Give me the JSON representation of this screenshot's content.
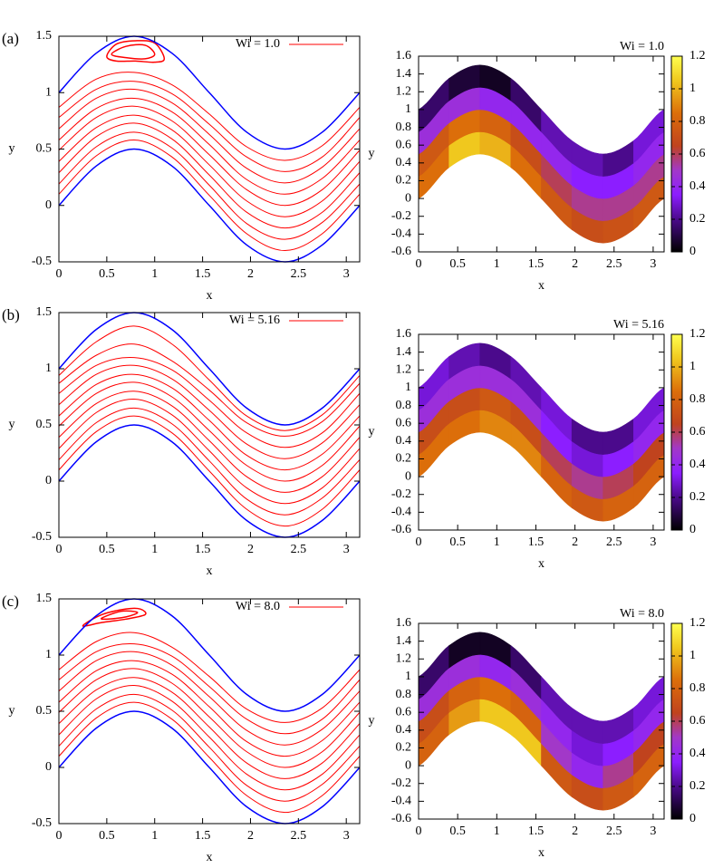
{
  "chart_data": [
    {
      "type": "line",
      "panel_label": "(a)",
      "xlabel": "x",
      "ylabel": "y",
      "xlim": [
        0,
        3.14
      ],
      "ylim": [
        -0.5,
        1.5
      ],
      "xticks": [
        0,
        0.5,
        1,
        1.5,
        2,
        2.5,
        3
      ],
      "yticks": [
        -0.5,
        0,
        0.5,
        1,
        1.5
      ],
      "x": [
        0,
        0.39,
        0.785,
        1.18,
        1.57,
        1.96,
        2.36,
        2.75,
        3.14
      ],
      "walls": {
        "color": "#0000ff",
        "lower": [
          0,
          0.35,
          0.5,
          0.35,
          0,
          -0.35,
          -0.5,
          -0.35,
          0
        ],
        "upper": [
          1,
          1.35,
          1.5,
          1.35,
          1,
          0.65,
          0.5,
          0.65,
          1
        ]
      },
      "series": [
        {
          "name": "Wi = 1.0",
          "color": "#ff0000",
          "lines": [
            [
              0.1,
              0.44,
              0.58,
              0.43,
              0.09,
              -0.25,
              -0.4,
              -0.25,
              0.1
            ],
            [
              0.19,
              0.52,
              0.65,
              0.51,
              0.18,
              -0.16,
              -0.3,
              -0.15,
              0.19
            ],
            [
              0.29,
              0.61,
              0.73,
              0.59,
              0.27,
              -0.06,
              -0.2,
              -0.06,
              0.29
            ],
            [
              0.39,
              0.69,
              0.8,
              0.67,
              0.36,
              0.04,
              -0.1,
              0.04,
              0.39
            ],
            [
              0.49,
              0.78,
              0.88,
              0.75,
              0.45,
              0.14,
              0,
              0.14,
              0.49
            ],
            [
              0.58,
              0.86,
              0.95,
              0.83,
              0.54,
              0.23,
              0.1,
              0.24,
              0.58
            ],
            [
              0.68,
              0.95,
              1.03,
              0.91,
              0.63,
              0.33,
              0.2,
              0.34,
              0.68
            ],
            [
              0.78,
              1.03,
              1.1,
              0.99,
              0.72,
              0.43,
              0.3,
              0.43,
              0.78
            ],
            [
              0.87,
              1.12,
              1.18,
              1.07,
              0.81,
              0.52,
              0.4,
              0.53,
              0.87
            ]
          ],
          "loops": [
            {
              "x": [
                0.5,
                0.6,
                0.8,
                1.0,
                1.1,
                1.0,
                0.8,
                0.6
              ],
              "y": [
                1.32,
                1.43,
                1.46,
                1.44,
                1.3,
                1.27,
                1.28,
                1.28
              ]
            },
            {
              "x": [
                0.55,
                0.7,
                0.9,
                1.0,
                0.9,
                0.7
              ],
              "y": [
                1.34,
                1.41,
                1.42,
                1.34,
                1.3,
                1.31
              ]
            }
          ]
        }
      ]
    },
    {
      "type": "heatmap",
      "title": "Wi = 1.0",
      "xlabel": "x",
      "ylabel": "y",
      "xlim": [
        0,
        3.14
      ],
      "ylim": [
        -0.6,
        1.6
      ],
      "xticks": [
        0,
        0.5,
        1,
        1.5,
        2,
        2.5,
        3
      ],
      "yticks": [
        -0.6,
        -0.4,
        -0.2,
        0,
        0.2,
        0.4,
        0.6,
        0.8,
        1,
        1.2,
        1.4,
        1.6
      ],
      "x": [
        0,
        0.39,
        0.785,
        1.18,
        1.57,
        1.96,
        2.36,
        2.75,
        3.14
      ],
      "y_lower": [
        0,
        0.35,
        0.5,
        0.35,
        0,
        -0.35,
        -0.5,
        -0.35,
        0
      ],
      "y_upper": [
        1,
        1.35,
        1.5,
        1.35,
        1,
        0.65,
        0.5,
        0.65,
        1
      ],
      "z": [
        [
          0.85,
          1.05,
          1.0,
          0.85,
          0.75,
          0.7,
          0.72,
          0.75
        ],
        [
          0.75,
          0.85,
          0.8,
          0.7,
          0.6,
          0.55,
          0.55,
          0.55
        ],
        [
          0.45,
          0.45,
          0.4,
          0.4,
          0.4,
          0.35,
          0.35,
          0.4
        ],
        [
          0.15,
          0.08,
          0.05,
          0.15,
          0.25,
          0.25,
          0.2,
          0.3
        ]
      ],
      "zlim": [
        0,
        1.2
      ],
      "zticks": [
        0,
        0.2,
        0.4,
        0.6,
        0.8,
        1,
        1.2
      ],
      "colormap": [
        {
          "value": 0,
          "color": "#000000"
        },
        {
          "value": 0.2,
          "color": "#4b0a8c"
        },
        {
          "value": 0.35,
          "color": "#8c1eff"
        },
        {
          "value": 0.5,
          "color": "#a238c8"
        },
        {
          "value": 0.65,
          "color": "#c0431e"
        },
        {
          "value": 0.85,
          "color": "#dc6e0a"
        },
        {
          "value": 1.05,
          "color": "#f0c81e"
        },
        {
          "value": 1.2,
          "color": "#ffff50"
        }
      ]
    },
    {
      "type": "line",
      "panel_label": "(b)",
      "xlabel": "x",
      "ylabel": "y",
      "xlim": [
        0,
        3.14
      ],
      "ylim": [
        -0.5,
        1.5
      ],
      "xticks": [
        0,
        0.5,
        1,
        1.5,
        2,
        2.5,
        3
      ],
      "yticks": [
        -0.5,
        0,
        0.5,
        1,
        1.5
      ],
      "x": [
        0,
        0.39,
        0.785,
        1.18,
        1.57,
        1.96,
        2.36,
        2.75,
        3.14
      ],
      "walls": {
        "color": "#0000ff",
        "lower": [
          0,
          0.35,
          0.5,
          0.35,
          0,
          -0.35,
          -0.5,
          -0.35,
          0
        ],
        "upper": [
          1,
          1.35,
          1.5,
          1.35,
          1,
          0.65,
          0.5,
          0.65,
          1
        ]
      },
      "series": [
        {
          "name": "Wi = 5.16",
          "color": "#ff0000",
          "lines": [
            [
              0.1,
              0.44,
              0.58,
              0.43,
              0.09,
              -0.25,
              -0.4,
              -0.25,
              0.1
            ],
            [
              0.19,
              0.52,
              0.65,
              0.51,
              0.18,
              -0.16,
              -0.3,
              -0.15,
              0.19
            ],
            [
              0.29,
              0.61,
              0.73,
              0.59,
              0.27,
              -0.06,
              -0.2,
              -0.06,
              0.29
            ],
            [
              0.39,
              0.69,
              0.8,
              0.67,
              0.36,
              0.04,
              -0.1,
              0.04,
              0.39
            ],
            [
              0.49,
              0.78,
              0.88,
              0.75,
              0.45,
              0.14,
              0,
              0.14,
              0.49
            ],
            [
              0.58,
              0.86,
              0.95,
              0.83,
              0.54,
              0.23,
              0.1,
              0.24,
              0.58
            ],
            [
              0.68,
              0.95,
              1.03,
              0.91,
              0.63,
              0.33,
              0.2,
              0.34,
              0.68
            ],
            [
              0.78,
              1.03,
              1.1,
              0.99,
              0.72,
              0.43,
              0.3,
              0.43,
              0.78
            ],
            [
              0.87,
              1.12,
              1.22,
              1.07,
              0.81,
              0.52,
              0.4,
              0.53,
              0.87
            ],
            [
              0.94,
              1.24,
              1.38,
              1.22,
              0.9,
              0.58,
              0.45,
              0.59,
              0.94
            ]
          ],
          "loops": []
        }
      ]
    },
    {
      "type": "heatmap",
      "title": "Wi = 5.16",
      "xlabel": "x",
      "ylabel": "y",
      "xlim": [
        0,
        3.14
      ],
      "ylim": [
        -0.6,
        1.6
      ],
      "xticks": [
        0,
        0.5,
        1,
        1.5,
        2,
        2.5,
        3
      ],
      "yticks": [
        -0.6,
        -0.4,
        -0.2,
        0,
        0.2,
        0.4,
        0.6,
        0.8,
        1,
        1.2,
        1.4,
        1.6
      ],
      "x": [
        0,
        0.39,
        0.785,
        1.18,
        1.57,
        1.96,
        2.36,
        2.75,
        3.14
      ],
      "y_lower": [
        0,
        0.35,
        0.5,
        0.35,
        0,
        -0.35,
        -0.5,
        -0.35,
        0
      ],
      "y_upper": [
        1,
        1.35,
        1.5,
        1.35,
        1,
        0.65,
        0.5,
        0.65,
        1
      ],
      "z": [
        [
          0.85,
          0.85,
          0.9,
          0.9,
          0.8,
          0.75,
          0.8,
          0.8
        ],
        [
          0.7,
          0.7,
          0.75,
          0.7,
          0.6,
          0.55,
          0.6,
          0.65
        ],
        [
          0.45,
          0.45,
          0.45,
          0.45,
          0.35,
          0.3,
          0.35,
          0.4
        ],
        [
          0.3,
          0.25,
          0.2,
          0.25,
          0.3,
          0.2,
          0.2,
          0.3
        ]
      ],
      "zlim": [
        0,
        1.2
      ],
      "zticks": [
        0,
        0.2,
        0.4,
        0.6,
        0.8,
        1,
        1.2
      ],
      "colormap": [
        {
          "value": 0,
          "color": "#000000"
        },
        {
          "value": 0.2,
          "color": "#4b0a8c"
        },
        {
          "value": 0.35,
          "color": "#8c1eff"
        },
        {
          "value": 0.5,
          "color": "#a238c8"
        },
        {
          "value": 0.65,
          "color": "#c0431e"
        },
        {
          "value": 0.85,
          "color": "#dc6e0a"
        },
        {
          "value": 1.05,
          "color": "#f0c81e"
        },
        {
          "value": 1.2,
          "color": "#ffff50"
        }
      ]
    },
    {
      "type": "line",
      "panel_label": "(c)",
      "xlabel": "x",
      "ylabel": "y",
      "xlim": [
        0,
        3.14
      ],
      "ylim": [
        -0.5,
        1.5
      ],
      "xticks": [
        0,
        0.5,
        1,
        1.5,
        2,
        2.5,
        3
      ],
      "yticks": [
        -0.5,
        0,
        0.5,
        1,
        1.5
      ],
      "x": [
        0,
        0.39,
        0.785,
        1.18,
        1.57,
        1.96,
        2.36,
        2.75,
        3.14
      ],
      "walls": {
        "color": "#0000ff",
        "lower": [
          0,
          0.35,
          0.5,
          0.35,
          0,
          -0.35,
          -0.5,
          -0.35,
          0
        ],
        "upper": [
          1,
          1.35,
          1.5,
          1.35,
          1,
          0.65,
          0.5,
          0.65,
          1
        ]
      },
      "series": [
        {
          "name": "Wi = 8.0",
          "color": "#ff0000",
          "lines": [
            [
              0.1,
              0.44,
              0.58,
              0.43,
              0.09,
              -0.25,
              -0.4,
              -0.25,
              0.1
            ],
            [
              0.19,
              0.52,
              0.65,
              0.51,
              0.18,
              -0.16,
              -0.3,
              -0.15,
              0.19
            ],
            [
              0.29,
              0.61,
              0.73,
              0.59,
              0.27,
              -0.06,
              -0.2,
              -0.06,
              0.29
            ],
            [
              0.39,
              0.69,
              0.8,
              0.67,
              0.36,
              0.04,
              -0.1,
              0.04,
              0.39
            ],
            [
              0.49,
              0.78,
              0.88,
              0.75,
              0.45,
              0.14,
              0,
              0.14,
              0.49
            ],
            [
              0.58,
              0.86,
              0.95,
              0.83,
              0.54,
              0.23,
              0.1,
              0.24,
              0.58
            ],
            [
              0.68,
              0.95,
              1.03,
              0.91,
              0.63,
              0.33,
              0.2,
              0.34,
              0.68
            ],
            [
              0.78,
              1.03,
              1.1,
              0.99,
              0.72,
              0.43,
              0.3,
              0.43,
              0.78
            ],
            [
              0.87,
              1.12,
              1.2,
              1.07,
              0.81,
              0.52,
              0.4,
              0.53,
              0.87
            ]
          ],
          "loops": [
            {
              "x": [
                0.25,
                0.45,
                0.7,
                0.85,
                0.9,
                0.7,
                0.45
              ],
              "y": [
                1.26,
                1.36,
                1.41,
                1.41,
                1.36,
                1.32,
                1.29
              ]
            },
            {
              "x": [
                0.45,
                0.65,
                0.82,
                0.7,
                0.5
              ],
              "y": [
                1.33,
                1.39,
                1.38,
                1.34,
                1.32
              ]
            }
          ]
        }
      ]
    },
    {
      "type": "heatmap",
      "title": "Wi = 8.0",
      "xlabel": "x",
      "ylabel": "y",
      "xlim": [
        0,
        3.14
      ],
      "ylim": [
        -0.6,
        1.6
      ],
      "xticks": [
        0,
        0.5,
        1,
        1.5,
        2,
        2.5,
        3
      ],
      "yticks": [
        -0.6,
        -0.4,
        -0.2,
        0,
        0.2,
        0.4,
        0.6,
        0.8,
        1,
        1.2,
        1.4,
        1.6
      ],
      "x": [
        0,
        0.39,
        0.785,
        1.18,
        1.57,
        1.96,
        2.36,
        2.75,
        3.14
      ],
      "y_lower": [
        0,
        0.35,
        0.5,
        0.35,
        0,
        -0.35,
        -0.5,
        -0.35,
        0
      ],
      "y_upper": [
        1,
        1.35,
        1.5,
        1.35,
        1,
        0.65,
        0.5,
        0.65,
        1
      ],
      "z": [
        [
          0.8,
          0.95,
          1.05,
          1.05,
          0.75,
          0.7,
          0.75,
          0.8
        ],
        [
          0.7,
          0.8,
          0.85,
          0.8,
          0.5,
          0.4,
          0.55,
          0.65
        ],
        [
          0.45,
          0.45,
          0.4,
          0.45,
          0.4,
          0.3,
          0.35,
          0.4
        ],
        [
          0.15,
          0.05,
          0.05,
          0.15,
          0.25,
          0.25,
          0.25,
          0.3
        ]
      ],
      "zlim": [
        0,
        1.2
      ],
      "zticks": [
        0,
        0.2,
        0.4,
        0.6,
        0.8,
        1,
        1.2
      ],
      "colormap": [
        {
          "value": 0,
          "color": "#000000"
        },
        {
          "value": 0.2,
          "color": "#4b0a8c"
        },
        {
          "value": 0.35,
          "color": "#8c1eff"
        },
        {
          "value": 0.5,
          "color": "#a238c8"
        },
        {
          "value": 0.65,
          "color": "#c0431e"
        },
        {
          "value": 0.85,
          "color": "#dc6e0a"
        },
        {
          "value": 1.05,
          "color": "#f0c81e"
        },
        {
          "value": 1.2,
          "color": "#ffff50"
        }
      ]
    }
  ]
}
